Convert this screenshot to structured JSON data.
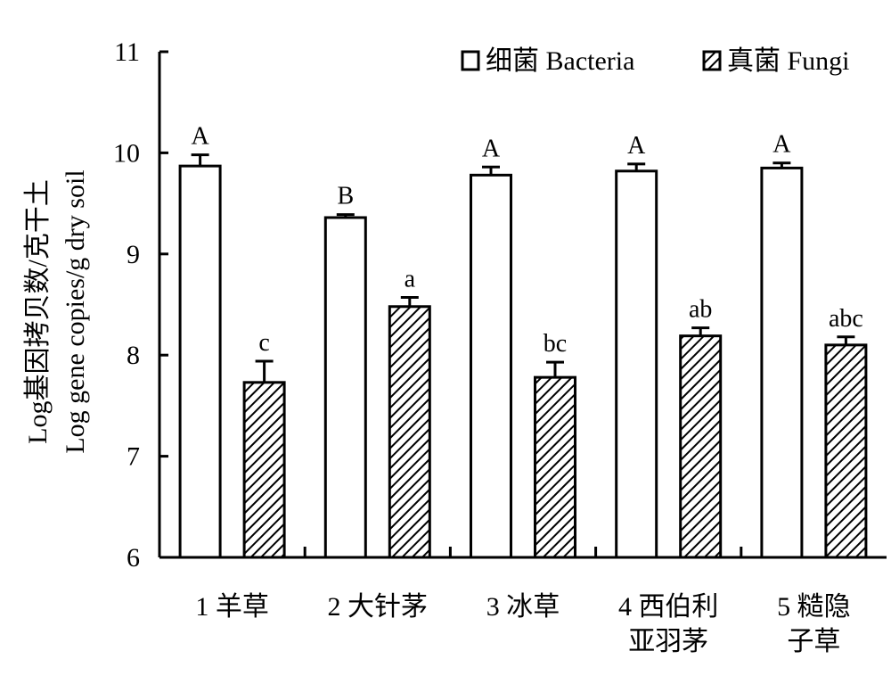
{
  "chart_data": {
    "type": "bar",
    "categories": [
      [
        "1 羊草"
      ],
      [
        "2 大针茅"
      ],
      [
        "3 冰草"
      ],
      [
        "4 西伯利",
        "亚羽茅"
      ],
      [
        "5 糙隐",
        "子草"
      ]
    ],
    "series": [
      {
        "name": "细菌 Bacteria",
        "pattern": "open",
        "values": [
          9.87,
          9.36,
          9.78,
          9.82,
          9.85
        ],
        "errors": [
          0.11,
          0.03,
          0.08,
          0.07,
          0.05
        ],
        "labels": [
          "A",
          "B",
          "A",
          "A",
          "A"
        ]
      },
      {
        "name": "真菌 Fungi",
        "pattern": "hatched",
        "values": [
          7.73,
          8.48,
          7.78,
          8.19,
          8.1
        ],
        "errors": [
          0.21,
          0.09,
          0.15,
          0.08,
          0.08
        ],
        "labels": [
          "c",
          "a",
          "bc",
          "ab",
          "abc"
        ]
      }
    ],
    "ylabel": [
      "Log基因拷贝数/克干土",
      "Log gene copies/g dry soil"
    ],
    "xlabel": "",
    "ylim": [
      6,
      11
    ],
    "yticks": [
      6,
      7,
      8,
      9,
      10,
      11
    ],
    "grid": false,
    "legend_position": "top-right",
    "colors": {
      "bar_stroke": "#000000",
      "bar_fill": "#ffffff",
      "hatch": "#000000"
    }
  }
}
